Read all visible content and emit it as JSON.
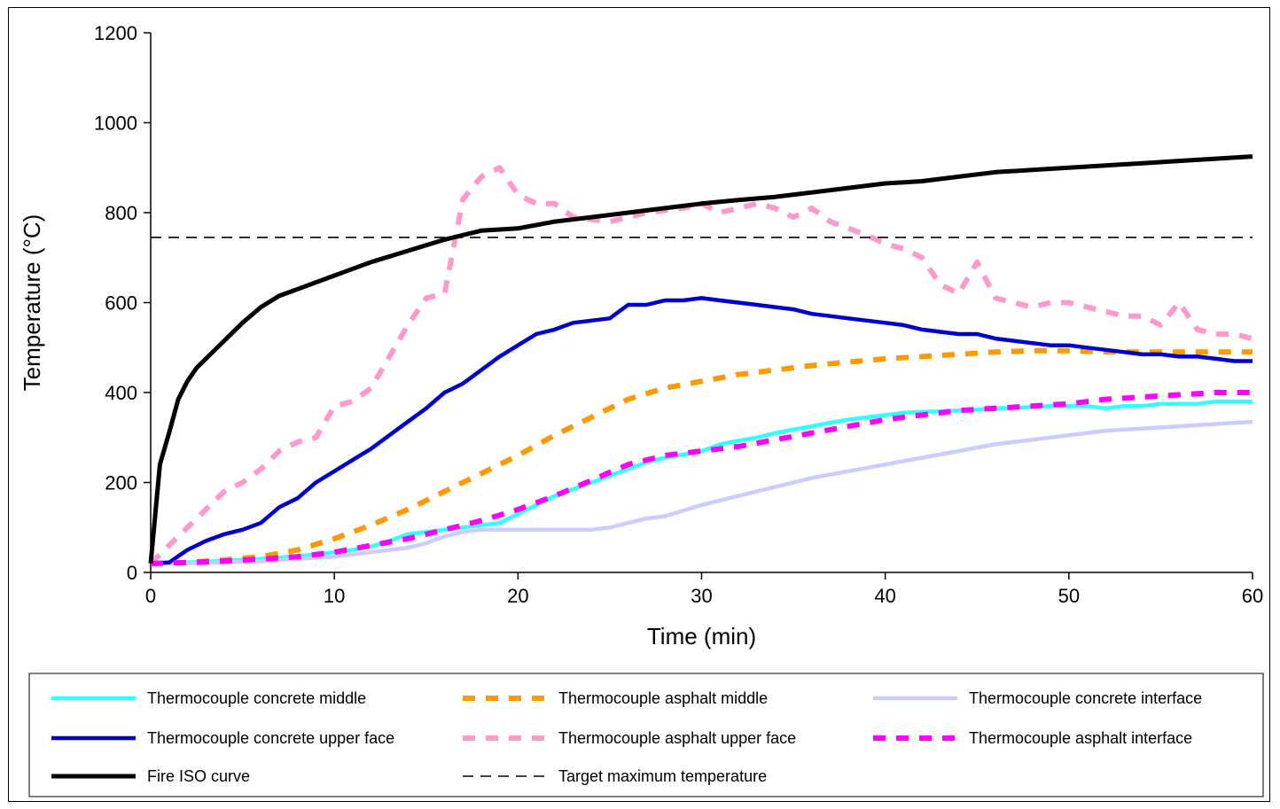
{
  "chart_data": {
    "type": "line",
    "title": "",
    "xlabel": "Time (min)",
    "ylabel": "Temperature (°C)",
    "xlim": [
      0,
      60
    ],
    "ylim": [
      0,
      1200
    ],
    "xticks": [
      "0",
      "10",
      "20",
      "30",
      "40",
      "50",
      "60"
    ],
    "yticks": [
      "0",
      "200",
      "400",
      "600",
      "800",
      "1000",
      "1200"
    ],
    "grid": false,
    "legend_position": "bottom",
    "series": [
      {
        "name": "Thermocouple concrete middle",
        "color": "#33FFFF",
        "style": "solid",
        "x": [
          0,
          1,
          2,
          3,
          4,
          5,
          6,
          7,
          8,
          9,
          10,
          11,
          12,
          13,
          14,
          15,
          16,
          17,
          18,
          19,
          20,
          21,
          22,
          23,
          24,
          25,
          26,
          27,
          28,
          29,
          30,
          31,
          32,
          33,
          34,
          35,
          36,
          37,
          38,
          39,
          40,
          41,
          42,
          43,
          44,
          45,
          46,
          47,
          48,
          49,
          50,
          51,
          52,
          53,
          54,
          55,
          56,
          57,
          58,
          59,
          60
        ],
        "y": [
          20,
          20,
          22,
          24,
          26,
          28,
          30,
          33,
          36,
          40,
          45,
          50,
          58,
          70,
          85,
          90,
          95,
          100,
          105,
          110,
          130,
          150,
          170,
          185,
          200,
          215,
          230,
          245,
          255,
          262,
          270,
          285,
          293,
          300,
          310,
          318,
          325,
          333,
          340,
          345,
          350,
          355,
          357,
          358,
          360,
          362,
          365,
          366,
          368,
          370,
          370,
          370,
          365,
          370,
          370,
          375,
          375,
          375,
          380,
          380,
          380
        ]
      },
      {
        "name": "Thermocouple asphalt middle",
        "color": "#FF9900",
        "style": "dashed",
        "x": [
          0,
          2,
          4,
          6,
          8,
          10,
          12,
          14,
          16,
          18,
          20,
          22,
          24,
          26,
          28,
          30,
          32,
          34,
          36,
          38,
          40,
          42,
          44,
          46,
          48,
          50,
          52,
          54,
          56,
          58,
          60
        ],
        "y": [
          20,
          22,
          28,
          35,
          50,
          75,
          105,
          140,
          180,
          220,
          260,
          305,
          345,
          385,
          410,
          425,
          440,
          450,
          460,
          468,
          475,
          480,
          485,
          490,
          493,
          493,
          490,
          490,
          490,
          490,
          490
        ]
      },
      {
        "name": "Thermocouple concrete interface",
        "color": "#CCCCFF",
        "style": "solid",
        "x": [
          0,
          2,
          4,
          6,
          8,
          10,
          12,
          14,
          15,
          16,
          17,
          18,
          19,
          20,
          22,
          24,
          25,
          26,
          27,
          28,
          30,
          32,
          34,
          36,
          38,
          40,
          42,
          44,
          46,
          48,
          50,
          52,
          54,
          56,
          58,
          60
        ],
        "y": [
          20,
          20,
          22,
          25,
          30,
          35,
          45,
          55,
          65,
          80,
          90,
          95,
          95,
          95,
          95,
          95,
          100,
          110,
          120,
          125,
          150,
          170,
          190,
          210,
          225,
          240,
          255,
          270,
          285,
          295,
          305,
          315,
          320,
          325,
          330,
          335
        ]
      },
      {
        "name": "Thermocouple concrete upper face",
        "color": "#0000CC",
        "style": "solid",
        "x": [
          0,
          1,
          2,
          3,
          4,
          5,
          6,
          7,
          8,
          9,
          10,
          11,
          12,
          13,
          14,
          15,
          16,
          17,
          18,
          19,
          20,
          21,
          22,
          23,
          24,
          25,
          26,
          27,
          28,
          29,
          30,
          31,
          32,
          33,
          34,
          35,
          36,
          37,
          38,
          39,
          40,
          41,
          42,
          43,
          44,
          45,
          46,
          47,
          48,
          49,
          50,
          51,
          52,
          53,
          54,
          55,
          56,
          57,
          58,
          59,
          60
        ],
        "y": [
          20,
          22,
          50,
          70,
          85,
          95,
          110,
          145,
          165,
          200,
          225,
          250,
          275,
          305,
          335,
          365,
          400,
          420,
          450,
          480,
          505,
          530,
          540,
          555,
          560,
          565,
          595,
          595,
          605,
          605,
          610,
          605,
          600,
          595,
          590,
          585,
          575,
          570,
          565,
          560,
          555,
          550,
          540,
          535,
          530,
          530,
          520,
          515,
          510,
          505,
          505,
          500,
          495,
          490,
          485,
          485,
          480,
          480,
          475,
          470,
          470
        ]
      },
      {
        "name": "Thermocouple asphalt upper face",
        "color": "#FF99CC",
        "style": "dashed",
        "x": [
          0,
          1,
          2,
          3,
          4,
          5,
          6,
          7,
          8,
          9,
          10,
          11,
          12,
          13,
          14,
          15,
          16,
          17,
          18,
          19,
          20,
          21,
          22,
          23,
          24,
          25,
          26,
          27,
          28,
          29,
          30,
          31,
          32,
          33,
          34,
          35,
          36,
          37,
          38,
          39,
          40,
          41,
          42,
          43,
          44,
          45,
          46,
          47,
          48,
          49,
          50,
          51,
          52,
          53,
          54,
          55,
          56,
          57,
          58,
          59,
          60
        ],
        "y": [
          20,
          60,
          100,
          140,
          180,
          200,
          230,
          270,
          290,
          300,
          370,
          380,
          410,
          480,
          550,
          610,
          620,
          830,
          880,
          900,
          840,
          820,
          820,
          790,
          785,
          780,
          790,
          800,
          805,
          810,
          820,
          800,
          810,
          820,
          810,
          790,
          810,
          780,
          765,
          750,
          730,
          720,
          700,
          640,
          620,
          690,
          610,
          600,
          590,
          600,
          600,
          590,
          580,
          570,
          570,
          550,
          600,
          540,
          530,
          530,
          520
        ]
      },
      {
        "name": "Thermocouple asphalt interface",
        "color": "#FF00FF",
        "style": "dashed",
        "x": [
          0,
          2,
          4,
          6,
          8,
          10,
          12,
          14,
          16,
          18,
          20,
          22,
          24,
          26,
          28,
          30,
          32,
          34,
          36,
          38,
          40,
          42,
          44,
          46,
          48,
          50,
          52,
          54,
          56,
          58,
          60
        ],
        "y": [
          20,
          22,
          25,
          30,
          35,
          45,
          60,
          75,
          95,
          115,
          140,
          170,
          205,
          240,
          260,
          270,
          280,
          295,
          310,
          325,
          340,
          350,
          360,
          365,
          370,
          375,
          385,
          390,
          395,
          400,
          400
        ]
      },
      {
        "name": "Fire ISO curve",
        "color": "#000000",
        "style": "solid",
        "x": [
          0,
          0.5,
          1,
          1.5,
          2,
          2.5,
          3,
          4,
          5,
          6,
          7,
          8,
          10,
          12,
          14,
          16,
          18,
          20,
          22,
          24,
          26,
          28,
          30,
          32,
          34,
          36,
          38,
          40,
          42,
          44,
          46,
          48,
          50,
          52,
          54,
          56,
          58,
          60
        ],
        "y": [
          20,
          240,
          310,
          385,
          425,
          455,
          475,
          515,
          555,
          590,
          615,
          630,
          660,
          690,
          715,
          740,
          760,
          765,
          780,
          790,
          800,
          810,
          820,
          828,
          835,
          845,
          855,
          865,
          870,
          880,
          890,
          895,
          900,
          905,
          910,
          915,
          920,
          925
        ]
      },
      {
        "name": "Target maximum temperature",
        "color": "#000000",
        "style": "thin-dashed",
        "x": [
          0,
          60
        ],
        "y": [
          745,
          745
        ]
      }
    ]
  }
}
